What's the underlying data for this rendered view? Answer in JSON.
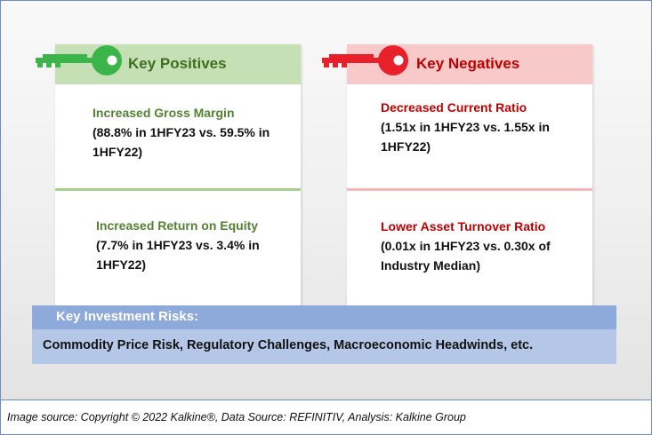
{
  "positives": {
    "header": "Key Positives",
    "items": [
      {
        "title": "Increased Gross Margin",
        "detail": "(88.8% in 1HFY23 vs. 59.5% in 1HFY22)"
      },
      {
        "title": "Increased Return on Equity",
        "detail": "(7.7% in 1HFY23 vs. 3.4% in 1HFY22)"
      }
    ]
  },
  "negatives": {
    "header": "Key Negatives",
    "items": [
      {
        "title": "Decreased Current Ratio",
        "detail": "(1.51x in 1HFY23 vs. 1.55x in 1HFY22)"
      },
      {
        "title": "Lower Asset Turnover Ratio",
        "detail": "(0.01x in 1HFY23 vs. 0.30x of Industry Median)"
      }
    ]
  },
  "risks": {
    "header": "Key Investment Risks:",
    "body": "Commodity Price Risk, Regulatory Challenges, Macroeconomic Headwinds, etc."
  },
  "footer": "Image source: Copyright © 2022 Kalkine®, Data Source: REFINITIV, Analysis: Kalkine Group",
  "colors": {
    "positive_accent": "#548235",
    "positive_header_bg": "#c5e0b4",
    "positive_key": "#3bb54a",
    "negative_accent": "#c00000",
    "negative_header_bg": "#f7c9c9",
    "negative_key": "#e8202a",
    "risk_header_bg": "#8eaadb",
    "risk_body_bg": "#b4c7e7"
  },
  "icons": {
    "positive": "green-key-icon",
    "negative": "red-key-icon"
  }
}
